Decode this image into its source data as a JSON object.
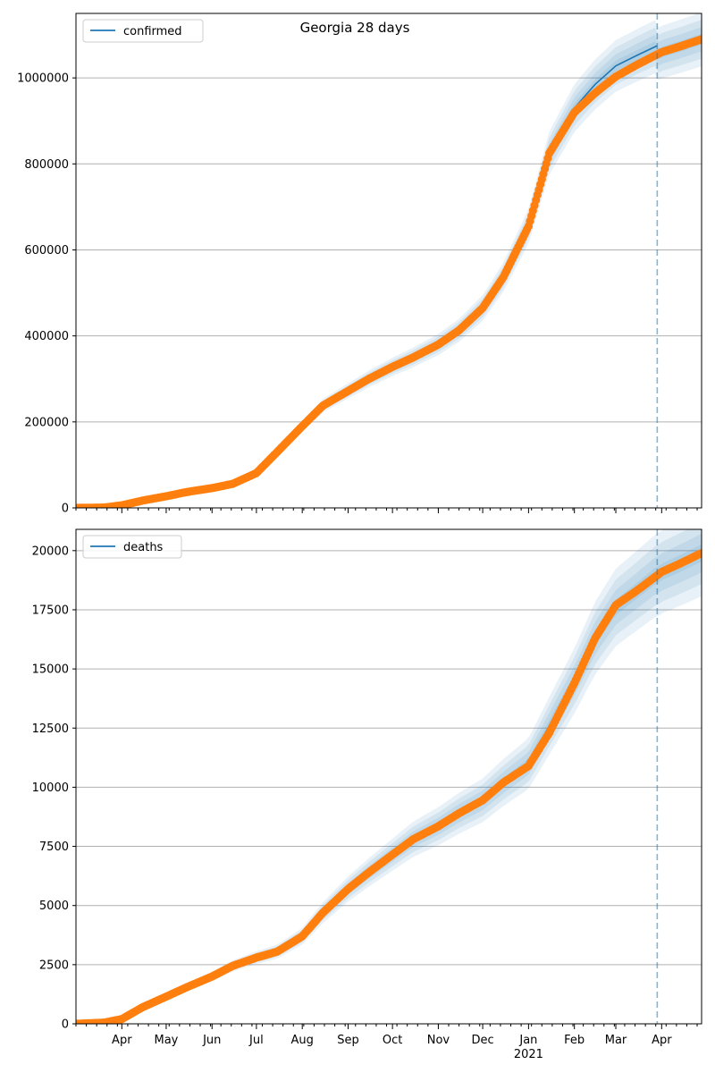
{
  "figure": {
    "title": "Georgia 28 days"
  },
  "colors": {
    "model": "#1f77b4",
    "observed": "#ff7f0e",
    "grid": "#b0b0b0",
    "band": "#1f77b4"
  },
  "chart_data": [
    {
      "type": "line",
      "legend": [
        "confirmed"
      ],
      "legend_position": "top-left",
      "grid": "y",
      "xlim": [
        "2020-03-01",
        "2021-04-28"
      ],
      "ylim": [
        0,
        1150000
      ],
      "yticks": [
        0,
        200000,
        400000,
        600000,
        800000,
        1000000
      ],
      "ytick_labels": [
        "0",
        "200000",
        "400000",
        "600000",
        "800000",
        "1000000"
      ],
      "forecast_start": "2021-03-29",
      "observed": {
        "x": [
          "2020-03-01",
          "2020-03-20",
          "2020-04-01",
          "2020-04-15",
          "2020-05-01",
          "2020-05-15",
          "2020-06-01",
          "2020-06-15",
          "2020-07-01",
          "2020-07-15",
          "2020-08-01",
          "2020-08-15",
          "2020-09-01",
          "2020-09-15",
          "2020-10-01",
          "2020-10-15",
          "2020-11-01",
          "2020-11-15",
          "2020-12-01",
          "2020-12-15",
          "2021-01-01",
          "2021-01-15",
          "2021-02-01",
          "2021-02-15",
          "2021-03-01",
          "2021-03-15",
          "2021-04-01",
          "2021-04-15",
          "2021-04-28"
        ],
        "y": [
          0,
          800,
          6000,
          17000,
          27000,
          37000,
          46000,
          56000,
          81000,
          130000,
          190000,
          238000,
          272000,
          300000,
          328000,
          350000,
          380000,
          413000,
          465000,
          537000,
          655000,
          825000,
          920000,
          965000,
          1003000,
          1030000,
          1060000,
          1075000,
          1090000
        ]
      },
      "model": {
        "x": [
          "2020-03-01",
          "2020-03-20",
          "2020-04-01",
          "2020-04-15",
          "2020-05-01",
          "2020-05-15",
          "2020-06-01",
          "2020-06-15",
          "2020-07-01",
          "2020-07-15",
          "2020-08-01",
          "2020-08-15",
          "2020-09-01",
          "2020-09-15",
          "2020-10-01",
          "2020-10-15",
          "2020-11-01",
          "2020-11-15",
          "2020-12-01",
          "2020-12-15",
          "2021-01-01",
          "2021-01-15",
          "2021-02-01",
          "2021-02-15",
          "2021-03-01",
          "2021-03-15",
          "2021-03-29"
        ],
        "y": [
          0,
          800,
          6000,
          17000,
          27000,
          37000,
          46000,
          56000,
          81000,
          130000,
          190000,
          238000,
          272000,
          300000,
          328000,
          350000,
          380000,
          413000,
          465000,
          537000,
          655000,
          825000,
          930000,
          985000,
          1028000,
          1052000,
          1075000
        ]
      },
      "band_spread_max": 0.055
    },
    {
      "type": "line",
      "legend": [
        "deaths"
      ],
      "legend_position": "top-left",
      "grid": "y",
      "xlim": [
        "2020-03-01",
        "2021-04-28"
      ],
      "ylim": [
        0,
        20900
      ],
      "yticks": [
        0,
        2500,
        5000,
        7500,
        10000,
        12500,
        15000,
        17500,
        20000
      ],
      "ytick_labels": [
        "0",
        "2500",
        "5000",
        "7500",
        "10000",
        "12500",
        "15000",
        "17500",
        "20000"
      ],
      "forecast_start": "2021-03-29",
      "observed": {
        "x": [
          "2020-03-01",
          "2020-03-20",
          "2020-04-01",
          "2020-04-15",
          "2020-05-01",
          "2020-05-15",
          "2020-06-01",
          "2020-06-15",
          "2020-07-01",
          "2020-07-15",
          "2020-08-01",
          "2020-08-15",
          "2020-09-01",
          "2020-09-15",
          "2020-10-01",
          "2020-10-15",
          "2020-11-01",
          "2020-11-15",
          "2020-12-01",
          "2020-12-15",
          "2021-01-01",
          "2021-01-15",
          "2021-02-01",
          "2021-02-15",
          "2021-03-01",
          "2021-03-15",
          "2021-04-01",
          "2021-04-15",
          "2021-04-28"
        ],
        "y": [
          0,
          50,
          200,
          700,
          1150,
          1550,
          2000,
          2450,
          2800,
          3050,
          3700,
          4700,
          5700,
          6400,
          7150,
          7800,
          8350,
          8900,
          9450,
          10200,
          10900,
          12300,
          14400,
          16300,
          17700,
          18300,
          19100,
          19500,
          19900
        ]
      },
      "model": {
        "x": [
          "2020-03-01",
          "2020-03-20",
          "2020-04-01",
          "2020-04-15",
          "2020-05-01",
          "2020-05-15",
          "2020-06-01",
          "2020-06-15",
          "2020-07-01",
          "2020-07-15",
          "2020-08-01",
          "2020-08-15",
          "2020-09-01",
          "2020-09-15",
          "2020-10-01",
          "2020-10-15",
          "2020-11-01",
          "2020-11-15",
          "2020-12-01",
          "2020-12-15",
          "2021-01-01",
          "2021-01-15",
          "2021-02-01",
          "2021-02-15",
          "2021-03-01",
          "2021-03-15",
          "2021-03-29"
        ],
        "y": [
          0,
          50,
          200,
          700,
          1150,
          1550,
          2000,
          2450,
          2800,
          3050,
          3700,
          4700,
          5700,
          6400,
          7150,
          7800,
          8350,
          8900,
          9450,
          10200,
          11000,
          12600,
          14500,
          16300,
          17600,
          18300,
          19000
        ]
      },
      "band_spread_max": 0.09
    }
  ],
  "x_axis": {
    "month_ticks": [
      "2020-04-01",
      "2020-05-01",
      "2020-06-01",
      "2020-07-01",
      "2020-08-01",
      "2020-09-01",
      "2020-10-01",
      "2020-11-01",
      "2020-12-01",
      "2021-01-01",
      "2021-02-01",
      "2021-03-01",
      "2021-04-01"
    ],
    "month_labels": [
      "Apr",
      "May",
      "Jun",
      "Jul",
      "Aug",
      "Sep",
      "Oct",
      "Nov",
      "Dec",
      "Jan",
      "Feb",
      "Mar",
      "Apr"
    ],
    "year_label": "2021",
    "year_label_under": "2021-01-01"
  }
}
